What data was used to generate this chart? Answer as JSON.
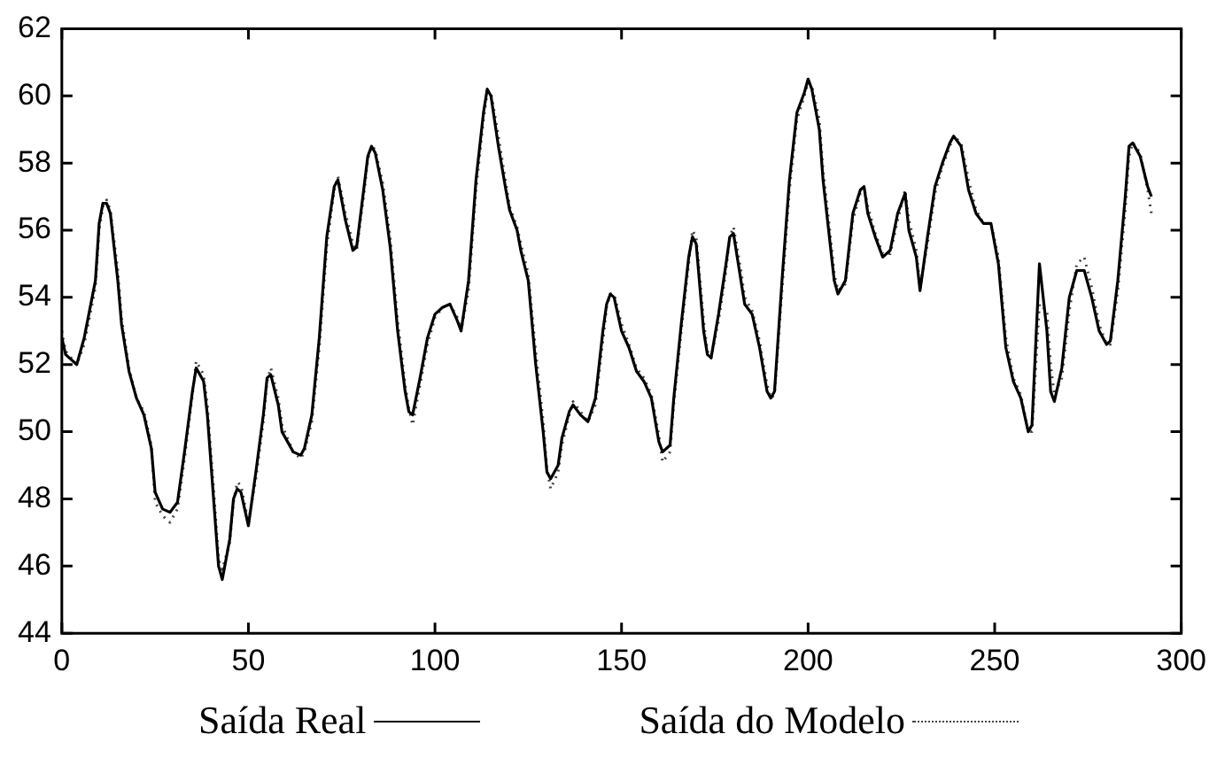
{
  "chart_data": {
    "type": "line",
    "marker": "none",
    "grid": false,
    "legend": "bottom",
    "xlim": [
      0,
      300
    ],
    "xticks": [
      0,
      50,
      100,
      150,
      200,
      250,
      300
    ],
    "ylim": [
      44,
      62
    ],
    "yticks": [
      44,
      46,
      48,
      50,
      52,
      54,
      56,
      58,
      60,
      62
    ],
    "series": [
      {
        "name": "Saída Real",
        "color": "#000000",
        "line_style": "solid",
        "x": [
          0,
          1,
          4,
          6,
          9,
          10,
          11,
          12,
          13,
          15,
          16,
          18,
          20,
          22,
          24,
          25,
          27,
          29,
          31,
          33,
          35,
          36,
          38,
          39,
          41,
          42,
          43,
          45,
          46,
          47,
          48,
          50,
          52,
          54,
          55,
          56,
          58,
          59,
          62,
          64,
          65,
          67,
          69,
          71,
          73,
          74,
          76,
          78,
          79,
          81,
          82,
          83,
          84,
          86,
          88,
          90,
          92,
          93,
          94,
          96,
          98,
          100,
          102,
          104,
          106,
          107,
          109,
          111,
          113,
          114,
          115,
          117,
          119,
          120,
          122,
          123,
          125,
          127,
          129,
          130,
          131,
          133,
          134,
          136,
          137,
          139,
          141,
          143,
          145,
          146,
          147,
          148,
          150,
          152,
          154,
          156,
          158,
          160,
          161,
          163,
          164,
          166,
          168,
          169,
          170,
          172,
          173,
          174,
          176,
          178,
          179,
          180,
          182,
          183,
          185,
          187,
          189,
          190,
          191,
          193,
          195,
          197,
          199,
          200,
          201,
          203,
          204,
          206,
          207,
          208,
          210,
          212,
          214,
          215,
          216,
          218,
          220,
          222,
          224,
          226,
          227,
          229,
          230,
          232,
          234,
          236,
          238,
          239,
          241,
          243,
          245,
          247,
          249,
          251,
          253,
          255,
          257,
          259,
          260,
          262,
          264,
          265,
          266,
          268,
          270,
          272,
          274,
          276,
          278,
          280,
          281,
          283,
          285,
          286,
          287,
          289,
          291,
          292
        ],
        "values": [
          52.8,
          52.3,
          52.0,
          52.8,
          54.5,
          56.2,
          56.8,
          56.8,
          56.5,
          54.5,
          53.2,
          51.8,
          51.0,
          50.5,
          49.5,
          48.2,
          47.7,
          47.6,
          47.9,
          49.5,
          51.2,
          51.9,
          51.5,
          50.5,
          47.5,
          46.0,
          45.6,
          46.8,
          48.0,
          48.3,
          48.2,
          47.2,
          48.8,
          50.5,
          51.6,
          51.7,
          50.8,
          50.0,
          49.4,
          49.3,
          49.5,
          50.5,
          52.8,
          55.8,
          57.3,
          57.5,
          56.3,
          55.4,
          55.5,
          57.3,
          58.2,
          58.5,
          58.3,
          57.2,
          55.5,
          53.0,
          51.2,
          50.6,
          50.5,
          51.6,
          52.8,
          53.5,
          53.7,
          53.8,
          53.3,
          53.0,
          54.5,
          57.5,
          59.5,
          60.2,
          60.0,
          58.5,
          57.2,
          56.6,
          56.0,
          55.4,
          54.5,
          52.0,
          50.0,
          48.8,
          48.6,
          49.0,
          49.8,
          50.6,
          50.8,
          50.5,
          50.3,
          51.0,
          53.0,
          53.8,
          54.1,
          54.0,
          53.0,
          52.5,
          51.8,
          51.5,
          51.0,
          49.7,
          49.4,
          49.6,
          51.0,
          53.2,
          55.2,
          55.8,
          55.6,
          53.0,
          52.3,
          52.2,
          53.5,
          55.0,
          55.8,
          55.9,
          54.5,
          53.8,
          53.5,
          52.5,
          51.2,
          51.0,
          51.2,
          54.5,
          57.5,
          59.5,
          60.1,
          60.5,
          60.2,
          59.0,
          57.5,
          55.5,
          54.5,
          54.1,
          54.5,
          56.5,
          57.2,
          57.3,
          56.5,
          55.8,
          55.2,
          55.4,
          56.5,
          57.1,
          56.0,
          55.2,
          54.2,
          55.8,
          57.3,
          58.0,
          58.6,
          58.8,
          58.5,
          57.2,
          56.5,
          56.2,
          56.2,
          55.0,
          52.5,
          51.5,
          51.0,
          50.0,
          50.2,
          55.0,
          53.0,
          51.2,
          50.9,
          51.9,
          54.0,
          54.8,
          54.8,
          54.0,
          53.0,
          52.6,
          52.7,
          54.5,
          57.0,
          58.5,
          58.6,
          58.2,
          57.3,
          57.0
        ]
      },
      {
        "name": "Saída do Modelo",
        "color": "#444444",
        "line_style": "dotted",
        "x": [
          0,
          1,
          4,
          6,
          9,
          10,
          11,
          12,
          13,
          15,
          16,
          18,
          20,
          22,
          24,
          25,
          27,
          29,
          31,
          33,
          35,
          36,
          38,
          39,
          41,
          42,
          43,
          45,
          46,
          47,
          48,
          50,
          52,
          54,
          55,
          56,
          58,
          59,
          62,
          64,
          65,
          67,
          69,
          71,
          73,
          74,
          76,
          78,
          79,
          81,
          82,
          83,
          84,
          86,
          88,
          90,
          92,
          93,
          94,
          96,
          98,
          100,
          102,
          104,
          106,
          107,
          109,
          111,
          113,
          114,
          115,
          117,
          119,
          120,
          122,
          123,
          125,
          127,
          129,
          130,
          131,
          133,
          134,
          136,
          137,
          139,
          141,
          143,
          145,
          146,
          147,
          148,
          150,
          152,
          154,
          156,
          158,
          160,
          161,
          163,
          164,
          166,
          168,
          169,
          170,
          172,
          173,
          174,
          176,
          178,
          179,
          180,
          182,
          183,
          185,
          187,
          189,
          190,
          191,
          193,
          195,
          197,
          199,
          200,
          201,
          203,
          204,
          206,
          207,
          208,
          210,
          212,
          214,
          215,
          216,
          218,
          220,
          222,
          224,
          226,
          227,
          229,
          230,
          232,
          234,
          236,
          238,
          239,
          241,
          243,
          245,
          247,
          249,
          251,
          253,
          255,
          257,
          259,
          260,
          262,
          264,
          265,
          266,
          268,
          270,
          272,
          274,
          276,
          278,
          280,
          281,
          283,
          285,
          286,
          287,
          289,
          291,
          292
        ],
        "values": [
          53.0,
          52.4,
          52.0,
          52.6,
          54.3,
          56.0,
          56.7,
          56.9,
          56.6,
          54.8,
          53.4,
          51.9,
          51.0,
          50.6,
          49.6,
          47.9,
          47.5,
          47.3,
          47.7,
          49.3,
          51.1,
          52.1,
          51.7,
          50.8,
          47.8,
          46.2,
          45.9,
          46.7,
          47.9,
          48.5,
          48.4,
          47.3,
          48.6,
          50.3,
          51.5,
          51.9,
          51.0,
          50.2,
          49.4,
          49.2,
          49.4,
          50.3,
          52.5,
          55.5,
          57.2,
          57.6,
          56.5,
          55.6,
          55.4,
          57.1,
          58.1,
          58.5,
          58.4,
          57.4,
          55.8,
          53.3,
          51.4,
          50.7,
          50.2,
          51.4,
          52.6,
          53.4,
          53.7,
          53.8,
          53.4,
          53.0,
          54.2,
          57.2,
          59.3,
          60.1,
          60.1,
          58.8,
          57.4,
          56.7,
          56.1,
          55.6,
          54.7,
          52.4,
          50.3,
          48.9,
          48.3,
          48.8,
          49.6,
          50.5,
          50.9,
          50.6,
          50.3,
          50.8,
          52.7,
          53.7,
          54.1,
          54.1,
          53.2,
          52.6,
          51.9,
          51.6,
          51.1,
          49.9,
          49.1,
          49.4,
          50.8,
          53.0,
          55.0,
          56.0,
          55.8,
          53.3,
          52.4,
          52.2,
          53.3,
          54.8,
          55.8,
          56.1,
          54.8,
          54.0,
          53.6,
          52.7,
          51.4,
          51.0,
          51.1,
          54.2,
          57.2,
          59.3,
          60.0,
          60.4,
          60.3,
          59.3,
          57.8,
          55.8,
          54.7,
          54.2,
          54.4,
          56.3,
          57.1,
          57.3,
          56.7,
          55.9,
          55.3,
          55.3,
          56.3,
          57.2,
          56.3,
          55.4,
          54.3,
          55.6,
          57.1,
          57.9,
          58.5,
          58.8,
          58.6,
          57.5,
          56.6,
          56.2,
          56.2,
          55.2,
          52.8,
          51.6,
          51.1,
          50.0,
          50.0,
          53.8,
          53.6,
          52.0,
          51.1,
          51.6,
          53.6,
          55.0,
          55.2,
          54.3,
          53.2,
          52.6,
          52.6,
          54.2,
          56.6,
          58.2,
          58.6,
          58.3,
          57.2,
          56.5
        ]
      }
    ]
  }
}
